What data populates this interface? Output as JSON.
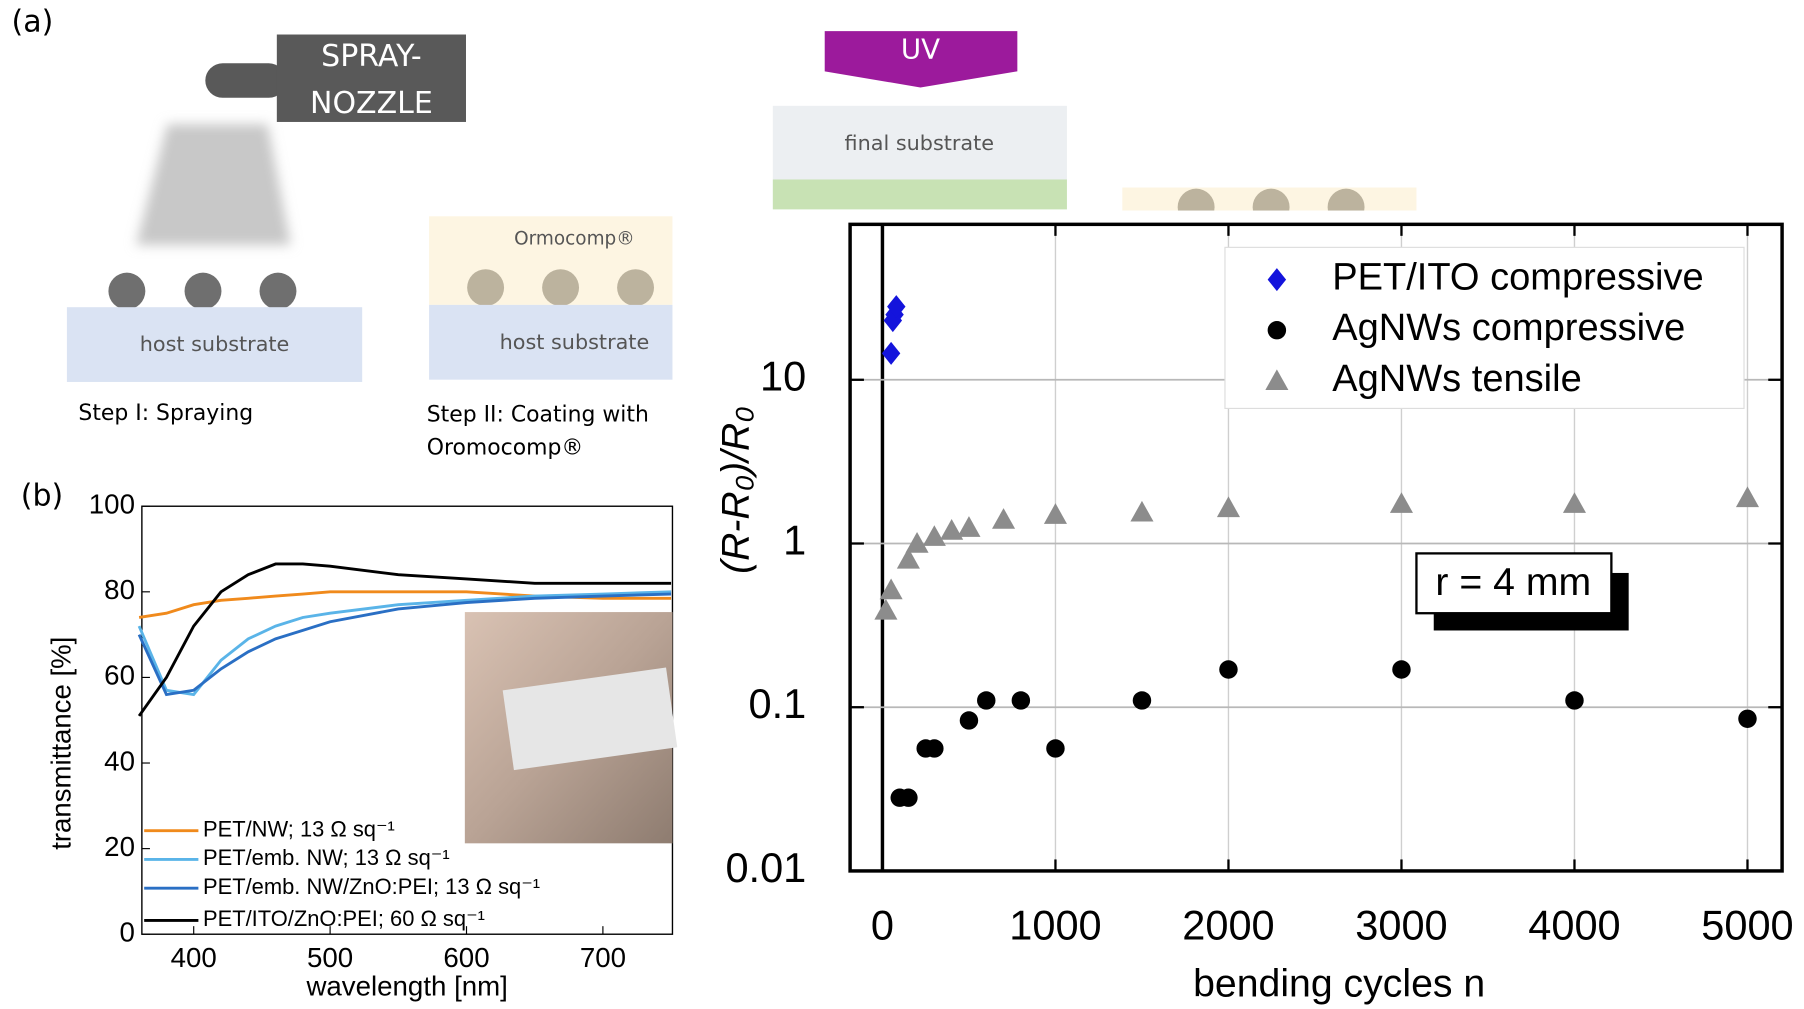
{
  "diagram": {
    "panel_a": "(a)",
    "panel_b": "(b)",
    "nozzle_1": "SPRAY-",
    "nozzle_2": "NOZZLE",
    "host_1": "host substrate",
    "step_1": "Step I: Spraying",
    "coating": "Ormocomp®",
    "host_2": "host substrate",
    "step_2_1": "Step II: Coating with",
    "step_2_2": "Oromocomp®",
    "uv": "UV",
    "final": "final substrate"
  },
  "chart_data": [
    {
      "type": "line",
      "x_label": "wavelength [nm]",
      "y_label": "transmittance [%]",
      "x": [
        360,
        380,
        400,
        420,
        440,
        460,
        480,
        500,
        550,
        600,
        650,
        700,
        750
      ],
      "series": [
        {
          "name": "PET/NW; 13 Ω sq⁻¹",
          "color": "#f08a1c",
          "values": [
            74,
            75,
            77,
            78,
            78.5,
            79,
            79.5,
            80,
            80,
            80,
            79,
            78.5,
            78.5
          ]
        },
        {
          "name": "PET/emb. NW; 13 Ω sq⁻¹",
          "color": "#5ab4e8",
          "values": [
            72,
            57,
            56,
            64,
            69,
            72,
            74,
            75,
            77,
            78,
            79,
            79.5,
            80
          ]
        },
        {
          "name": "PET/emb. NW/ZnO:PEI; 13 Ω sq⁻¹",
          "color": "#2a6fc4",
          "values": [
            70,
            56,
            57,
            62,
            66,
            69,
            71,
            73,
            76,
            77.5,
            78.5,
            79,
            79.5
          ]
        },
        {
          "name": "PET/ITO/ZnO:PEI; 60 Ω sq⁻¹",
          "color": "#000000",
          "values": [
            51,
            60,
            72,
            80,
            84,
            86.5,
            86.5,
            86,
            84,
            83,
            82,
            82,
            82
          ]
        }
      ],
      "xlim": [
        362,
        751
      ],
      "xticks": [
        400,
        500,
        600,
        700
      ],
      "ylim": [
        0,
        100
      ],
      "yticks": [
        0,
        20,
        40,
        60,
        80,
        100
      ],
      "legend": "lower left"
    },
    {
      "type": "scatter",
      "x_label": "bending cycles n",
      "y_label": "(R-R₀)/R₀",
      "annotation": "r = 4 mm",
      "log_y": true,
      "grid": true,
      "legend": "upper right",
      "xlim": [
        -187,
        5200
      ],
      "xticks": [
        0,
        1000,
        2000,
        3000,
        4000,
        5000
      ],
      "ylim": [
        0.01,
        89
      ],
      "yticks": [
        0.01,
        0.1,
        1,
        10
      ],
      "series": [
        {
          "name": "PET/ITO compressive",
          "color": "#1414dc",
          "marker": "diamond",
          "x": [
            50,
            60,
            70,
            80
          ],
          "values": [
            14.5,
            23,
            25,
            28
          ]
        },
        {
          "name": "AgNWs compressive",
          "color": "#000000",
          "marker": "circle",
          "x": [
            100,
            150,
            250,
            300,
            500,
            600,
            800,
            1000,
            1500,
            2000,
            3000,
            4000,
            5000
          ],
          "values": [
            0.028,
            0.028,
            0.056,
            0.056,
            0.083,
            0.11,
            0.11,
            0.056,
            0.11,
            0.17,
            0.17,
            0.11,
            0.085
          ]
        },
        {
          "name": "AgNWs tensile",
          "color": "#8c8c8c",
          "marker": "triangle",
          "x": [
            20,
            50,
            150,
            200,
            300,
            400,
            500,
            700,
            1000,
            1500,
            2000,
            3000,
            4000,
            5000
          ],
          "values": [
            0.39,
            0.52,
            0.8,
            1.0,
            1.1,
            1.2,
            1.25,
            1.4,
            1.5,
            1.55,
            1.65,
            1.75,
            1.75,
            1.9
          ]
        }
      ]
    }
  ]
}
